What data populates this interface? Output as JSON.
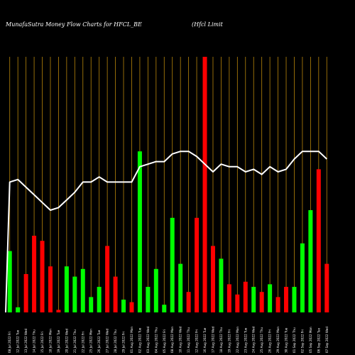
{
  "chart_data": {
    "type": "bar",
    "title": "MunafaSutra  Money Flow  Charts for HFCL_BE",
    "subtitle": "(Hfcl Limit",
    "colors": {
      "background": "#000000",
      "grid": "#b8860b",
      "up": "#00ff00",
      "down": "#ff0000",
      "line": "#ffffff"
    },
    "ylim": [
      0,
      100
    ],
    "categories": [
      "08 Jul 2022 Fri",
      "12 Jul 2022 Tue",
      "13 Jul 2022 Wed",
      "14 Jul 2022 Thu",
      "15 Jul 2022 Fri",
      "18 Jul 2022 Mon",
      "19 Jul 2022 Tue",
      "20 Jul 2022 Wed",
      "21 Jul 2022 Thu",
      "22 Jul 2022 Fri",
      "25 Jul 2022 Mon",
      "26 Jul 2022 Tue",
      "27 Jul 2022 Wed",
      "28 Jul 2022 Thu",
      "29 Jul 2022 Fri",
      "01 Aug 2022 Mon",
      "02 Aug 2022 Tue",
      "03 Aug 2022 Wed",
      "04 Aug 2022 Thu",
      "05 Aug 2022 Fri",
      "08 Aug 2022 Mon",
      "10 Aug 2022 Wed",
      "11 Aug 2022 Thu",
      "12 Aug 2022 Fri",
      "16 Aug 2022 Tue",
      "17 Aug 2022 Wed",
      "18 Aug 2022 Thu",
      "19 Aug 2022 Fri",
      "22 Aug 2022 Mon",
      "23 Aug 2022 Tue",
      "24 Aug 2022 Wed",
      "25 Aug 2022 Thu",
      "26 Aug 2022 Fri",
      "29 Aug 2022 Mon",
      "30 Aug 2022 Tue",
      "01 Sep 2022 Thu",
      "02 Sep 2022 Fri",
      "05 Sep 2022 Mon",
      "06 Sep 2022 Tue",
      "07 Sep 2022 Wed"
    ],
    "series": [
      {
        "kind": "bars",
        "values": [
          24,
          2,
          15,
          30,
          28,
          18,
          1,
          18,
          14,
          17,
          6,
          10,
          26,
          14,
          5,
          4,
          63,
          10,
          17,
          3,
          37,
          19,
          8,
          37,
          100,
          26,
          21,
          11,
          7,
          12,
          10,
          8,
          11,
          6,
          10,
          10,
          27,
          40,
          56,
          19
        ],
        "directions": [
          "up",
          "up",
          "down",
          "down",
          "down",
          "down",
          "down",
          "up",
          "up",
          "up",
          "up",
          "up",
          "down",
          "down",
          "up",
          "down",
          "up",
          "up",
          "up",
          "up",
          "up",
          "up",
          "down",
          "down",
          "down",
          "down",
          "up",
          "down",
          "down",
          "down",
          "up",
          "down",
          "up",
          "down",
          "down",
          "up",
          "up",
          "up",
          "down",
          "down"
        ]
      },
      {
        "kind": "line",
        "values": [
          51,
          52,
          49,
          46,
          43,
          40,
          41,
          44,
          47,
          51,
          51,
          53,
          51,
          51,
          51,
          51,
          57,
          58,
          59,
          59,
          62,
          63,
          63,
          61,
          58,
          55,
          58,
          57,
          57,
          55,
          56,
          54,
          57,
          55,
          56,
          60,
          63,
          63,
          63,
          60
        ]
      }
    ]
  }
}
